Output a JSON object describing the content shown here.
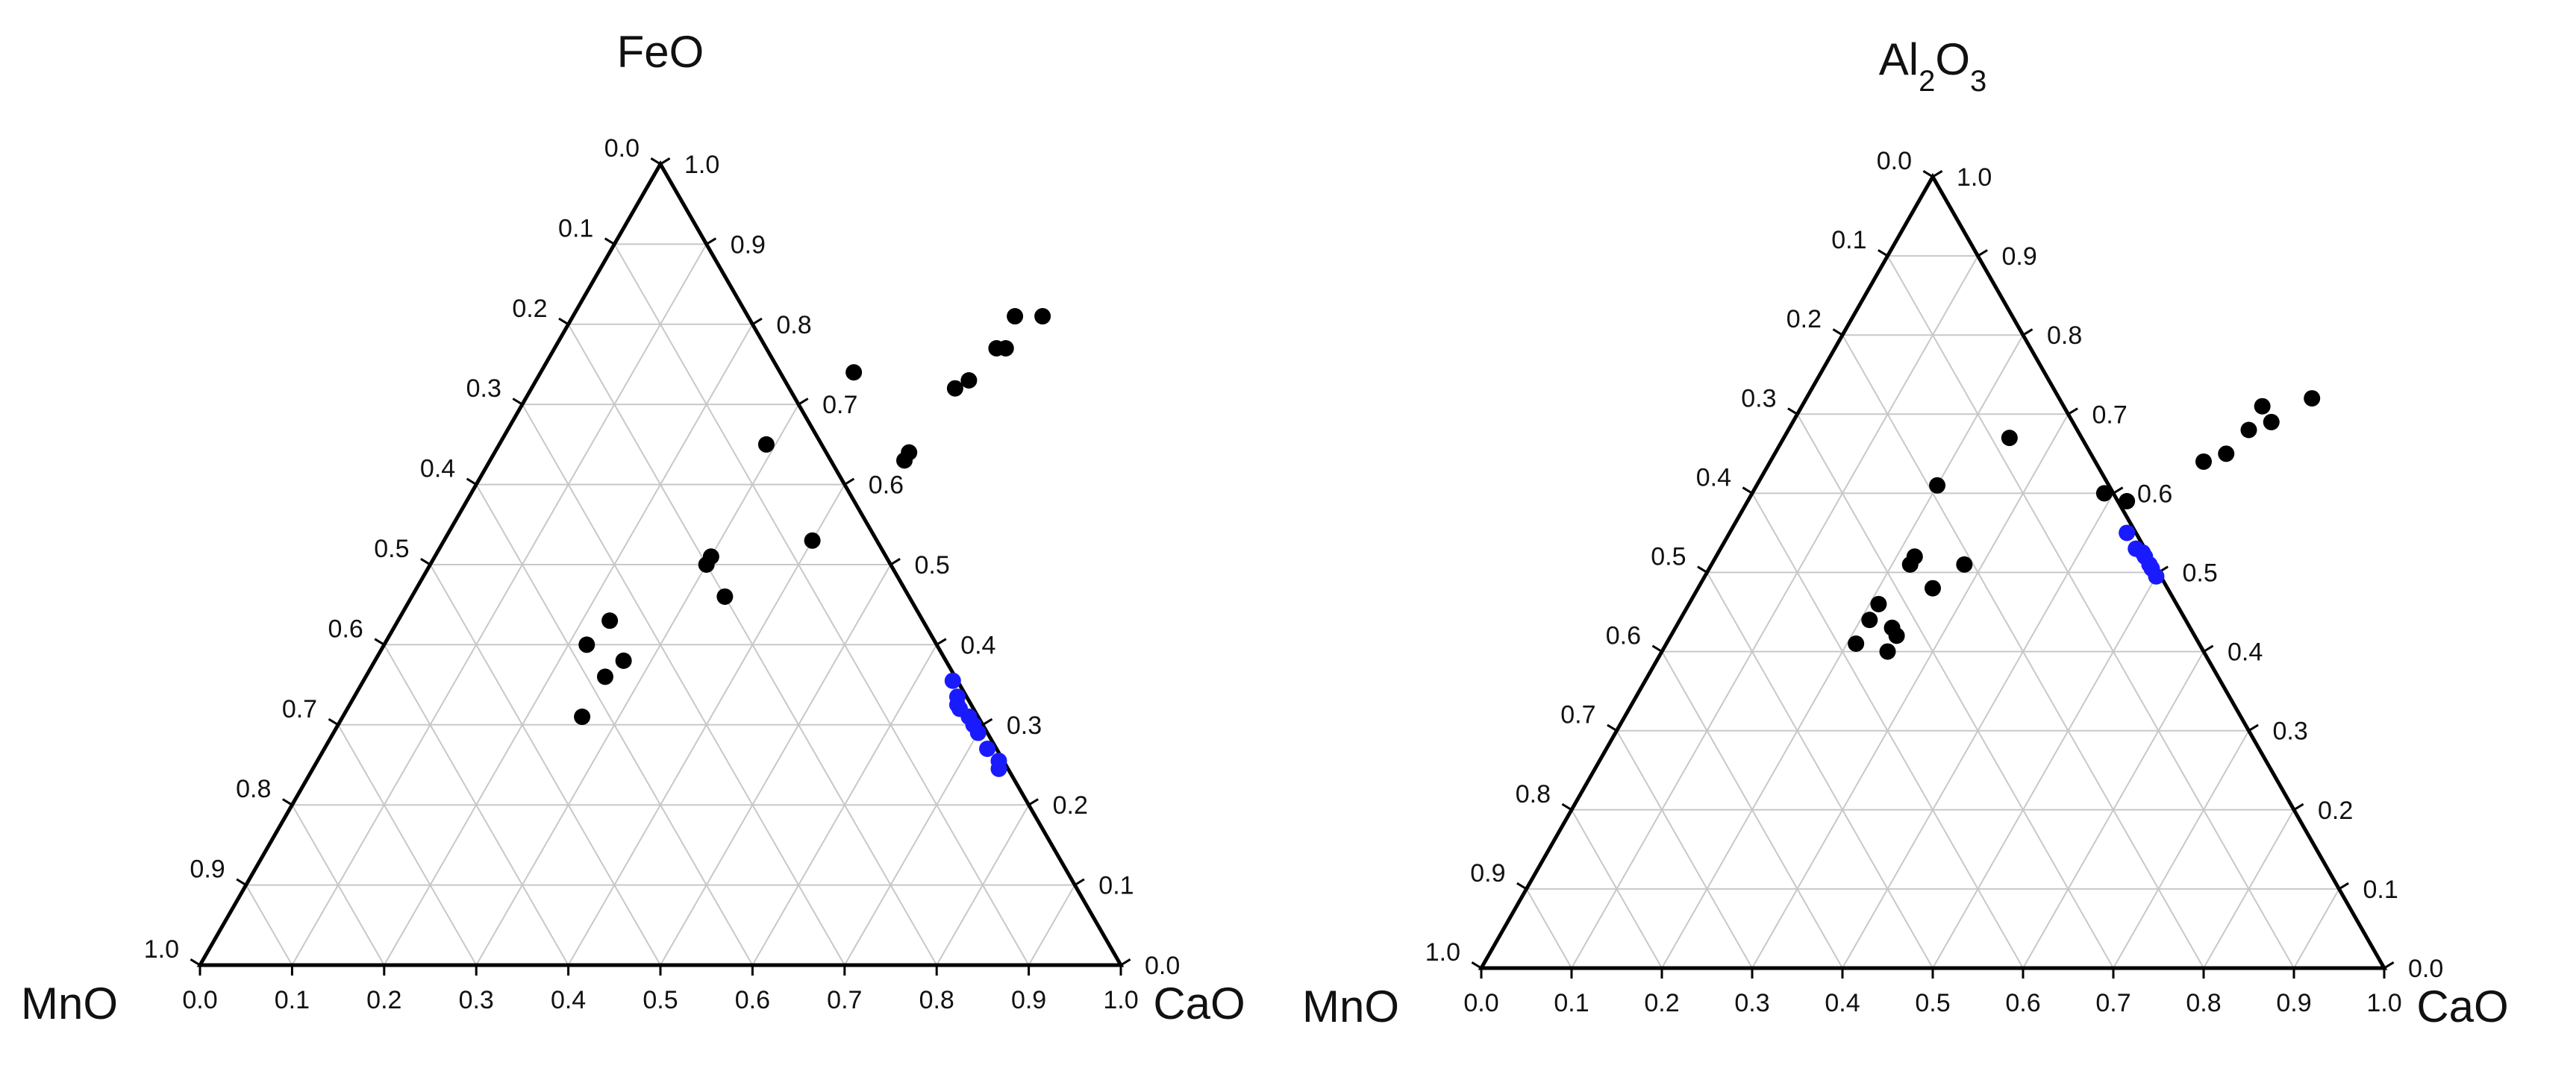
{
  "chart_data": [
    {
      "type": "scatter",
      "subtype": "ternary",
      "title": "FeO",
      "vertex_labels": {
        "top": "FeO",
        "left": "MnO",
        "right": "CaO"
      },
      "axes": {
        "left_edge_ticks": [
          "0.0",
          "0.1",
          "0.2",
          "0.3",
          "0.4",
          "0.5",
          "0.6",
          "0.7",
          "0.8",
          "0.9",
          "1.0"
        ],
        "right_edge_ticks": [
          "1.0",
          "0.9",
          "0.8",
          "0.7",
          "0.6",
          "0.5",
          "0.4",
          "0.3",
          "0.2",
          "0.1",
          "0.0"
        ],
        "bottom_edge_ticks": [
          "0.0",
          "0.1",
          "0.2",
          "0.3",
          "0.4",
          "0.5",
          "0.6",
          "0.7",
          "0.8",
          "0.9",
          "1.0"
        ],
        "grid_step": 0.1,
        "grid": true
      },
      "series": [
        {
          "name": "black",
          "color": "#000000",
          "points": [
            {
              "top": 0.81,
              "right": 0.51
            },
            {
              "top": 0.81,
              "right": 0.48
            },
            {
              "top": 0.77,
              "right": 0.48
            },
            {
              "top": 0.77,
              "right": 0.49
            },
            {
              "top": 0.73,
              "right": 0.47
            },
            {
              "top": 0.72,
              "right": 0.46
            },
            {
              "top": 0.74,
              "right": 0.34
            },
            {
              "top": 0.65,
              "right": 0.29
            },
            {
              "top": 0.64,
              "right": 0.45
            },
            {
              "top": 0.63,
              "right": 0.45
            },
            {
              "top": 0.53,
              "right": 0.4
            },
            {
              "top": 0.51,
              "right": 0.3
            },
            {
              "top": 0.5,
              "right": 0.3
            },
            {
              "top": 0.46,
              "right": 0.34
            },
            {
              "top": 0.43,
              "right": 0.23
            },
            {
              "top": 0.4,
              "right": 0.22
            },
            {
              "top": 0.38,
              "right": 0.27
            },
            {
              "top": 0.36,
              "right": 0.26
            },
            {
              "top": 0.31,
              "right": 0.26
            }
          ]
        },
        {
          "name": "blue",
          "color": "#1a1aff",
          "points": [
            {
              "top": 0.355,
              "right": 0.64
            },
            {
              "top": 0.335,
              "right": 0.655
            },
            {
              "top": 0.32,
              "right": 0.665
            },
            {
              "top": 0.325,
              "right": 0.66
            },
            {
              "top": 0.31,
              "right": 0.68
            },
            {
              "top": 0.3,
              "right": 0.69
            },
            {
              "top": 0.29,
              "right": 0.7
            },
            {
              "top": 0.27,
              "right": 0.72
            },
            {
              "top": 0.255,
              "right": 0.74
            },
            {
              "top": 0.245,
              "right": 0.745
            }
          ]
        }
      ]
    },
    {
      "type": "scatter",
      "subtype": "ternary",
      "title": "Al2O3",
      "title_parts": [
        {
          "text": "Al",
          "sub": false
        },
        {
          "text": "2",
          "sub": true
        },
        {
          "text": "O",
          "sub": false
        },
        {
          "text": "3",
          "sub": true
        }
      ],
      "vertex_labels": {
        "top": "Al2O3",
        "left": "MnO",
        "right": "CaO"
      },
      "axes": {
        "left_edge_ticks": [
          "0.0",
          "0.1",
          "0.2",
          "0.3",
          "0.4",
          "0.5",
          "0.6",
          "0.7",
          "0.8",
          "0.9",
          "1.0"
        ],
        "right_edge_ticks": [
          "1.0",
          "0.9",
          "0.8",
          "0.7",
          "0.6",
          "0.5",
          "0.4",
          "0.3",
          "0.2",
          "0.1",
          "0.0"
        ],
        "bottom_edge_ticks": [
          "0.0",
          "0.1",
          "0.2",
          "0.3",
          "0.4",
          "0.5",
          "0.6",
          "0.7",
          "0.8",
          "0.9",
          "1.0"
        ],
        "grid_step": 0.1,
        "grid": true
      },
      "series": [
        {
          "name": "black",
          "color": "#000000",
          "points": [
            {
              "top": 0.72,
              "right": 0.56
            },
            {
              "top": 0.71,
              "right": 0.51
            },
            {
              "top": 0.69,
              "right": 0.53
            },
            {
              "top": 0.68,
              "right": 0.51
            },
            {
              "top": 0.65,
              "right": 0.5
            },
            {
              "top": 0.64,
              "right": 0.48
            },
            {
              "top": 0.67,
              "right": 0.25
            },
            {
              "top": 0.6,
              "right": 0.39
            },
            {
              "top": 0.59,
              "right": 0.42
            },
            {
              "top": 0.61,
              "right": 0.2
            },
            {
              "top": 0.52,
              "right": 0.22
            },
            {
              "top": 0.51,
              "right": 0.22
            },
            {
              "top": 0.51,
              "right": 0.28
            },
            {
              "top": 0.48,
              "right": 0.26
            },
            {
              "top": 0.46,
              "right": 0.21
            },
            {
              "top": 0.44,
              "right": 0.21
            },
            {
              "top": 0.43,
              "right": 0.24
            },
            {
              "top": 0.42,
              "right": 0.25
            },
            {
              "top": 0.41,
              "right": 0.21
            },
            {
              "top": 0.4,
              "right": 0.25
            }
          ]
        },
        {
          "name": "blue",
          "color": "#1a1aff",
          "points": [
            {
              "top": 0.55,
              "right": 0.44
            },
            {
              "top": 0.53,
              "right": 0.46
            },
            {
              "top": 0.525,
              "right": 0.47
            },
            {
              "top": 0.52,
              "right": 0.475
            },
            {
              "top": 0.51,
              "right": 0.485
            },
            {
              "top": 0.505,
              "right": 0.49
            },
            {
              "top": 0.495,
              "right": 0.5
            }
          ]
        }
      ]
    }
  ]
}
